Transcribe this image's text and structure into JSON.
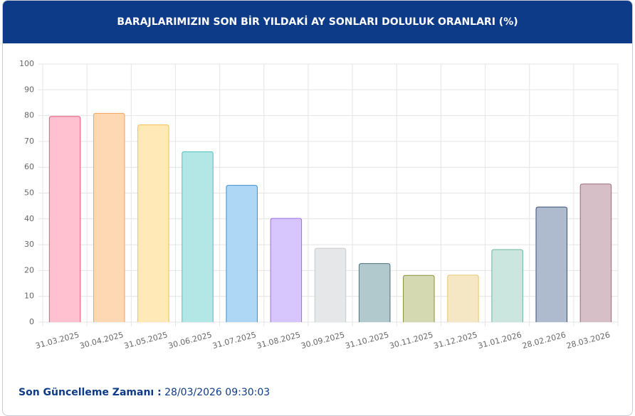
{
  "chart_data": {
    "type": "bar",
    "title": "BARAJLARIMIZIN SON BİR YILDAKİ AY SONLARI DOLULUK ORANLARI (%)",
    "categories": [
      "31.03.2025",
      "30.04.2025",
      "31.05.2025",
      "30.06.2025",
      "31.07.2025",
      "31.08.2025",
      "30.09.2025",
      "31.10.2025",
      "30.11.2025",
      "31.12.2025",
      "31.01.2026",
      "28.02.2026",
      "28.03.2026"
    ],
    "values": [
      79.7,
      80.9,
      76.4,
      66,
      53,
      40.2,
      28.6,
      22.7,
      18.1,
      18.2,
      28.1,
      44.6,
      53.5
    ],
    "colors": [
      "#ffc0cf",
      "#fed8b2",
      "#ffe9b7",
      "#b3e7e6",
      "#aed7f6",
      "#d7c5fd",
      "#e6e7e9",
      "#b1c8cd",
      "#d4d9b1",
      "#f5e7c4",
      "#cbe6df",
      "#aebbcf",
      "#d6bfc6"
    ],
    "border_colors": [
      "#e8577c",
      "#f0a35c",
      "#f5c04f",
      "#4fbfbf",
      "#3b8fd0",
      "#9a6ee0",
      "#c7c9cc",
      "#4e6f77",
      "#8a8f3a",
      "#e6c97a",
      "#6bb69f",
      "#3c4f75",
      "#9a6b78"
    ],
    "ylim": [
      0,
      100
    ],
    "yticks": [
      0,
      10,
      20,
      30,
      40,
      50,
      60,
      70,
      80,
      90,
      100
    ],
    "grid": true
  },
  "footer": {
    "label": "Son Güncelleme Zamanı :",
    "value": "28/03/2026 09:30:03"
  }
}
